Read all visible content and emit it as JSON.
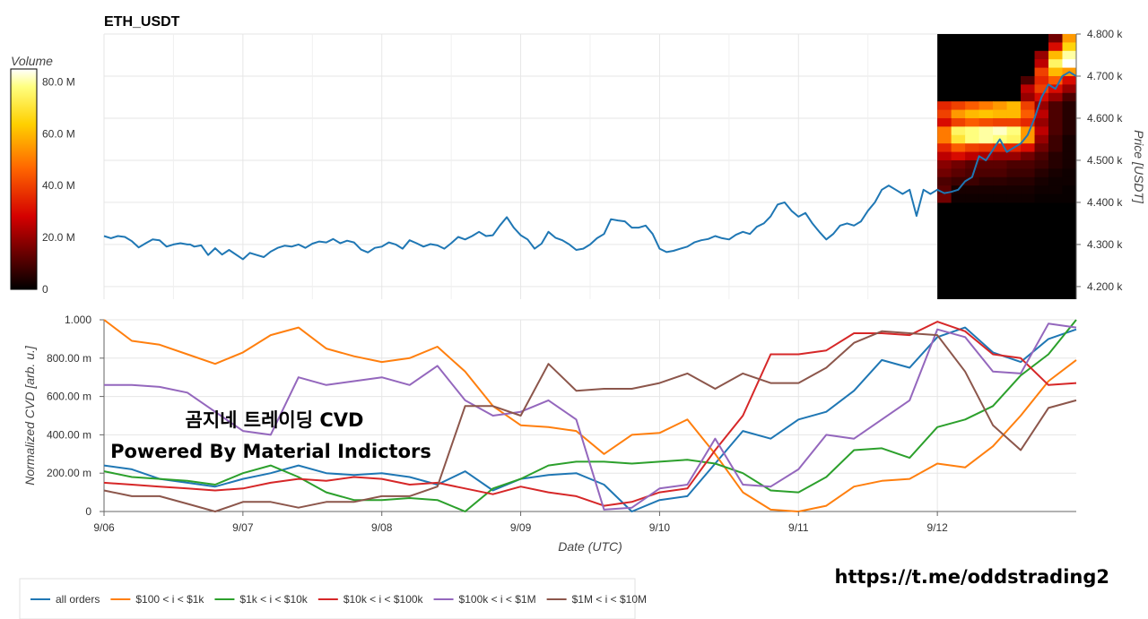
{
  "title": "ETH_USDT",
  "colorbar": {
    "label": "Volume",
    "ticks": [
      "80.0 M",
      "60.0 M",
      "40.0 M",
      "20.0 M",
      "0"
    ],
    "tick_values": [
      80,
      60,
      40,
      20,
      0
    ],
    "range": [
      0,
      85
    ],
    "colormap": "hot"
  },
  "overlay": {
    "line1": "곰지네 트레이딩 CVD",
    "line2": "Powered By Material Indictors"
  },
  "url": "https://t.me/oddstrading2",
  "colors": {
    "all": "#1f77b4",
    "s100": "#ff7f0e",
    "s1k": "#2ca02c",
    "s10k": "#d62728",
    "s100k": "#9467bd",
    "s1m": "#8c564b",
    "grid": "#e6e6e6"
  },
  "chart_data": [
    {
      "type": "line",
      "title": "ETH_USDT",
      "ylabel": "Price [USDT]",
      "yticks": [
        "4.800 k",
        "4.700 k",
        "4.600 k",
        "4.500 k",
        "4.400 k",
        "4.300 k",
        "4.200 k"
      ],
      "ytick_values": [
        4800,
        4700,
        4600,
        4500,
        4400,
        4300,
        4200
      ],
      "ylim": [
        4170,
        4800
      ],
      "xlim": [
        0,
        7
      ],
      "series": [
        {
          "color": "#1f77b4",
          "x": [
            0,
            0.05,
            0.1,
            0.15,
            0.2,
            0.25,
            0.3,
            0.35,
            0.4,
            0.45,
            0.5,
            0.55,
            0.6,
            0.62,
            0.65,
            0.7,
            0.75,
            0.8,
            0.85,
            0.9,
            1.0,
            1.05,
            1.1,
            1.15,
            1.2,
            1.25,
            1.3,
            1.35,
            1.4,
            1.45,
            1.5,
            1.55,
            1.6,
            1.65,
            1.7,
            1.75,
            1.8,
            1.85,
            1.9,
            1.95,
            2.0,
            2.05,
            2.1,
            2.15,
            2.2,
            2.25,
            2.3,
            2.35,
            2.4,
            2.45,
            2.5,
            2.55,
            2.6,
            2.65,
            2.7,
            2.75,
            2.8,
            2.85,
            2.9,
            2.95,
            3.0,
            3.05,
            3.1,
            3.15,
            3.2,
            3.25,
            3.3,
            3.35,
            3.4,
            3.45,
            3.5,
            3.55,
            3.6,
            3.65,
            3.7,
            3.75,
            3.8,
            3.85,
            3.9,
            3.95,
            4.0,
            4.05,
            4.1,
            4.15,
            4.2,
            4.25,
            4.3,
            4.35,
            4.4,
            4.45,
            4.5,
            4.55,
            4.6,
            4.65,
            4.7,
            4.75,
            4.8,
            4.85,
            4.9,
            4.95,
            5.0,
            5.05,
            5.1,
            5.15,
            5.2,
            5.25,
            5.3,
            5.35,
            5.4,
            5.45,
            5.5,
            5.55,
            5.6,
            5.65,
            5.7,
            5.75,
            5.8,
            5.85,
            5.9,
            5.95,
            6.0,
            6.05,
            6.1,
            6.15,
            6.2,
            6.25,
            6.3,
            6.35,
            6.4,
            6.45,
            6.5,
            6.55,
            6.6,
            6.65,
            6.7,
            6.75,
            6.8,
            6.85,
            6.9,
            6.95,
            7.0
          ],
          "y": [
            4320,
            4315,
            4320,
            4318,
            4308,
            4293,
            4303,
            4312,
            4310,
            4295,
            4300,
            4303,
            4300,
            4300,
            4295,
            4298,
            4275,
            4291,
            4276,
            4287,
            4265,
            4280,
            4275,
            4270,
            4283,
            4292,
            4297,
            4295,
            4300,
            4292,
            4302,
            4307,
            4305,
            4313,
            4303,
            4309,
            4305,
            4288,
            4281,
            4292,
            4295,
            4305,
            4300,
            4290,
            4310,
            4303,
            4295,
            4301,
            4298,
            4290,
            4303,
            4318,
            4312,
            4320,
            4330,
            4320,
            4322,
            4345,
            4365,
            4340,
            4322,
            4312,
            4290,
            4302,
            4330,
            4316,
            4310,
            4300,
            4287,
            4290,
            4300,
            4315,
            4325,
            4360,
            4357,
            4355,
            4340,
            4340,
            4345,
            4325,
            4290,
            4282,
            4285,
            4290,
            4295,
            4305,
            4310,
            4313,
            4320,
            4315,
            4312,
            4323,
            4330,
            4325,
            4342,
            4350,
            4367,
            4395,
            4400,
            4380,
            4366,
            4375,
            4350,
            4330,
            4312,
            4325,
            4345,
            4350,
            4345,
            4355,
            4380,
            4400,
            4430,
            4440,
            4430,
            4420,
            4430,
            4368,
            4430,
            4420,
            4430,
            4422,
            4425,
            4430,
            4450,
            4460,
            4510,
            4500,
            4525,
            4550,
            4520,
            4530,
            4540,
            4560,
            4600,
            4650,
            4680,
            4670,
            4700,
            4710,
            4700
          ],
          "note": "downsampled trace"
        }
      ],
      "heatmap": {
        "x_start": 6.0,
        "x_end": 7.0,
        "price_bins": [
          4780,
          4760,
          4740,
          4720,
          4700,
          4680,
          4660,
          4640,
          4620,
          4600,
          4580,
          4560,
          4540,
          4520,
          4500,
          4480,
          4460,
          4440,
          4420,
          4400
        ],
        "time_bins": 10,
        "volume": [
          [
            0,
            0,
            0,
            0,
            0,
            0,
            0,
            0,
            15,
            55
          ],
          [
            0,
            0,
            0,
            0,
            0,
            0,
            0,
            0,
            30,
            65
          ],
          [
            0,
            0,
            0,
            0,
            0,
            0,
            0,
            20,
            60,
            80
          ],
          [
            0,
            0,
            0,
            0,
            0,
            0,
            0,
            25,
            75,
            85
          ],
          [
            0,
            0,
            0,
            0,
            0,
            0,
            0,
            40,
            60,
            55
          ],
          [
            0,
            0,
            0,
            0,
            0,
            0,
            10,
            35,
            45,
            30
          ],
          [
            0,
            0,
            0,
            0,
            0,
            0,
            25,
            40,
            30,
            20
          ],
          [
            0,
            0,
            0,
            0,
            0,
            0,
            20,
            30,
            20,
            10
          ],
          [
            35,
            40,
            45,
            50,
            55,
            60,
            40,
            20,
            10,
            5
          ],
          [
            40,
            55,
            60,
            62,
            60,
            60,
            45,
            25,
            10,
            5
          ],
          [
            30,
            40,
            45,
            42,
            40,
            40,
            35,
            20,
            10,
            5
          ],
          [
            50,
            75,
            78,
            80,
            82,
            78,
            55,
            25,
            10,
            5
          ],
          [
            50,
            70,
            78,
            80,
            78,
            75,
            55,
            20,
            8,
            3
          ],
          [
            35,
            45,
            40,
            38,
            35,
            35,
            30,
            15,
            8,
            3
          ],
          [
            25,
            30,
            25,
            22,
            20,
            20,
            15,
            10,
            5,
            3
          ],
          [
            18,
            15,
            12,
            12,
            12,
            10,
            10,
            8,
            5,
            3
          ],
          [
            15,
            12,
            10,
            10,
            10,
            8,
            8,
            5,
            3,
            2
          ],
          [
            10,
            8,
            8,
            6,
            6,
            5,
            5,
            3,
            2,
            2
          ],
          [
            12,
            3,
            3,
            3,
            3,
            3,
            3,
            2,
            2,
            1
          ],
          [
            15,
            2,
            2,
            2,
            2,
            2,
            2,
            1,
            1,
            1
          ]
        ]
      }
    },
    {
      "type": "line",
      "ylabel": "Normalized CVD [arb. u.]",
      "xlabel": "Date (UTC)",
      "yticks": [
        "1.000",
        "800.00 m",
        "600.00 m",
        "400.00 m",
        "200.00 m",
        "0"
      ],
      "ytick_values": [
        1.0,
        0.8,
        0.6,
        0.4,
        0.2,
        0
      ],
      "ylim": [
        0,
        1.0
      ],
      "xticks": [
        "9/06",
        "9/07",
        "9/08",
        "9/09",
        "9/10",
        "9/11",
        "9/12"
      ],
      "xtick_values": [
        0,
        1,
        2,
        3,
        4,
        5,
        6
      ],
      "xlim": [
        0,
        7
      ],
      "series": [
        {
          "name": "all orders",
          "color": "#1f77b4",
          "x": [
            0,
            0.2,
            0.4,
            0.6,
            0.8,
            1.0,
            1.2,
            1.4,
            1.6,
            1.8,
            2.0,
            2.2,
            2.4,
            2.6,
            2.8,
            3.0,
            3.2,
            3.4,
            3.6,
            3.8,
            4.0,
            4.2,
            4.4,
            4.6,
            4.8,
            5.0,
            5.2,
            5.4,
            5.6,
            5.8,
            6.0,
            6.2,
            6.4,
            6.6,
            6.8,
            7.0
          ],
          "y": [
            0.24,
            0.22,
            0.17,
            0.15,
            0.13,
            0.17,
            0.2,
            0.24,
            0.2,
            0.19,
            0.2,
            0.18,
            0.14,
            0.21,
            0.11,
            0.17,
            0.19,
            0.2,
            0.14,
            0.0,
            0.06,
            0.08,
            0.25,
            0.42,
            0.38,
            0.48,
            0.52,
            0.63,
            0.79,
            0.75,
            0.91,
            0.96,
            0.83,
            0.78,
            0.9,
            0.95
          ]
        },
        {
          "name": "$100 < i < $1k",
          "color": "#ff7f0e",
          "x": [
            0,
            0.2,
            0.4,
            0.6,
            0.8,
            1.0,
            1.2,
            1.4,
            1.6,
            1.8,
            2.0,
            2.2,
            2.4,
            2.6,
            2.8,
            3.0,
            3.2,
            3.4,
            3.6,
            3.8,
            4.0,
            4.2,
            4.4,
            4.6,
            4.8,
            5.0,
            5.2,
            5.4,
            5.6,
            5.8,
            6.0,
            6.2,
            6.4,
            6.6,
            6.8,
            7.0
          ],
          "y": [
            1.0,
            0.89,
            0.87,
            0.82,
            0.77,
            0.83,
            0.92,
            0.96,
            0.85,
            0.81,
            0.78,
            0.8,
            0.86,
            0.73,
            0.55,
            0.45,
            0.44,
            0.42,
            0.3,
            0.4,
            0.41,
            0.48,
            0.3,
            0.1,
            0.01,
            0.0,
            0.03,
            0.13,
            0.16,
            0.17,
            0.25,
            0.23,
            0.34,
            0.5,
            0.68,
            0.79
          ]
        },
        {
          "name": "$1k < i < $10k",
          "color": "#2ca02c",
          "x": [
            0,
            0.2,
            0.4,
            0.6,
            0.8,
            1.0,
            1.2,
            1.4,
            1.6,
            1.8,
            2.0,
            2.2,
            2.4,
            2.6,
            2.8,
            3.0,
            3.2,
            3.4,
            3.6,
            3.8,
            4.0,
            4.2,
            4.4,
            4.6,
            4.8,
            5.0,
            5.2,
            5.4,
            5.6,
            5.8,
            6.0,
            6.2,
            6.4,
            6.6,
            6.8,
            7.0
          ],
          "y": [
            0.21,
            0.18,
            0.17,
            0.16,
            0.14,
            0.2,
            0.24,
            0.18,
            0.1,
            0.06,
            0.06,
            0.07,
            0.06,
            0.0,
            0.12,
            0.17,
            0.24,
            0.26,
            0.26,
            0.25,
            0.26,
            0.27,
            0.25,
            0.2,
            0.11,
            0.1,
            0.18,
            0.32,
            0.33,
            0.28,
            0.44,
            0.48,
            0.55,
            0.71,
            0.82,
            1.0
          ]
        },
        {
          "name": "$10k < i < $100k",
          "color": "#d62728",
          "x": [
            0,
            0.2,
            0.4,
            0.6,
            0.8,
            1.0,
            1.2,
            1.4,
            1.6,
            1.8,
            2.0,
            2.2,
            2.4,
            2.6,
            2.8,
            3.0,
            3.2,
            3.4,
            3.6,
            3.8,
            4.0,
            4.2,
            4.4,
            4.6,
            4.8,
            5.0,
            5.2,
            5.4,
            5.6,
            5.8,
            6.0,
            6.2,
            6.4,
            6.6,
            6.8,
            7.0
          ],
          "y": [
            0.15,
            0.14,
            0.13,
            0.12,
            0.11,
            0.12,
            0.15,
            0.17,
            0.16,
            0.18,
            0.17,
            0.14,
            0.15,
            0.12,
            0.09,
            0.13,
            0.1,
            0.08,
            0.03,
            0.05,
            0.1,
            0.12,
            0.32,
            0.5,
            0.82,
            0.82,
            0.84,
            0.93,
            0.93,
            0.92,
            0.99,
            0.94,
            0.82,
            0.8,
            0.66,
            0.67
          ]
        },
        {
          "name": "$100k < i < $1M",
          "color": "#9467bd",
          "x": [
            0,
            0.2,
            0.4,
            0.6,
            0.8,
            1.0,
            1.2,
            1.4,
            1.6,
            1.8,
            2.0,
            2.2,
            2.4,
            2.6,
            2.8,
            3.0,
            3.2,
            3.4,
            3.6,
            3.8,
            4.0,
            4.2,
            4.4,
            4.6,
            4.8,
            5.0,
            5.2,
            5.4,
            5.6,
            5.8,
            6.0,
            6.2,
            6.4,
            6.6,
            6.8,
            7.0
          ],
          "y": [
            0.66,
            0.66,
            0.65,
            0.62,
            0.52,
            0.42,
            0.4,
            0.7,
            0.66,
            0.68,
            0.7,
            0.66,
            0.76,
            0.58,
            0.5,
            0.52,
            0.58,
            0.48,
            0.01,
            0.02,
            0.12,
            0.14,
            0.38,
            0.14,
            0.13,
            0.22,
            0.4,
            0.38,
            0.48,
            0.58,
            0.95,
            0.91,
            0.73,
            0.72,
            0.98,
            0.96
          ]
        },
        {
          "name": "$1M < i < $10M",
          "color": "#8c564b",
          "x": [
            0,
            0.2,
            0.4,
            0.6,
            0.8,
            1.0,
            1.2,
            1.4,
            1.6,
            1.8,
            2.0,
            2.2,
            2.4,
            2.6,
            2.8,
            3.0,
            3.2,
            3.4,
            3.6,
            3.8,
            4.0,
            4.2,
            4.4,
            4.6,
            4.8,
            5.0,
            5.2,
            5.4,
            5.6,
            5.8,
            6.0,
            6.2,
            6.4,
            6.6,
            6.8,
            7.0
          ],
          "y": [
            0.11,
            0.08,
            0.08,
            0.04,
            0.0,
            0.05,
            0.05,
            0.02,
            0.05,
            0.05,
            0.08,
            0.08,
            0.13,
            0.55,
            0.55,
            0.5,
            0.77,
            0.63,
            0.64,
            0.64,
            0.67,
            0.72,
            0.64,
            0.72,
            0.67,
            0.67,
            0.75,
            0.88,
            0.94,
            0.93,
            0.92,
            0.73,
            0.45,
            0.32,
            0.54,
            0.58
          ]
        }
      ],
      "legend": "bottom"
    }
  ]
}
